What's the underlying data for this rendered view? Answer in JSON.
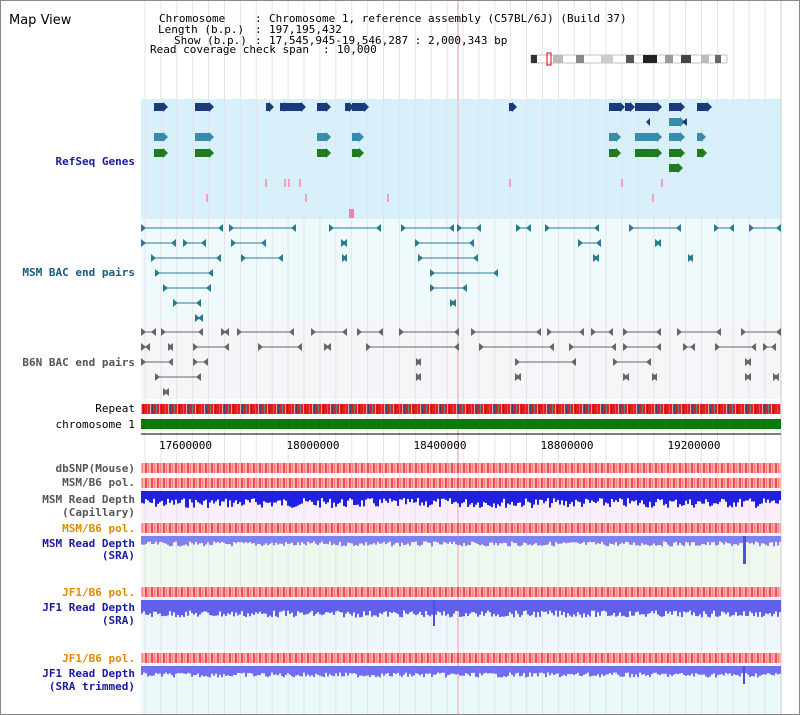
{
  "view_title": "Map View",
  "info": {
    "chromosome_label": "Chromosome",
    "chromosome_value": "Chromosome 1, reference assembly (C57BL/6J) (Build 37)",
    "length_label": "Length (b.p.)",
    "length_value": "197,195,432",
    "show_label": "Show (b.p.)",
    "show_value": "17,545,945-19,546,287 : 2,000,343 bp",
    "coverage_label": "Read coverage check span",
    "coverage_value": "10,000"
  },
  "ruler": {
    "ticks": [
      "17600000",
      "18000000",
      "18400000",
      "18800000",
      "19200000"
    ]
  },
  "tracks": {
    "refseq": "RefSeq Genes",
    "msm_bac": "MSM BAC end pairs",
    "b6n_bac": "B6N BAC end pairs",
    "repeat": "Repeat",
    "chromosome": "chromosome 1",
    "dbsnp": "dbSNP(Mouse)",
    "msm_b6_pol_1": "MSM/B6 pol.",
    "msm_depth_cap_1": "MSM Read Depth",
    "msm_depth_cap_2": "(Capillary)",
    "msm_b6_pol_2": "MSM/B6 pol.",
    "msm_depth_sra_1": "MSM Read Depth",
    "msm_depth_sra_2": "(SRA)",
    "jf1_b6_pol_1": "JF1/B6 pol.",
    "jf1_depth_sra_1": "JF1 Read Depth",
    "jf1_depth_sra_2": "(SRA)",
    "jf1_b6_pol_2": "JF1/B6 pol.",
    "jf1_depth_trim_1": "JF1 Read Depth",
    "jf1_depth_trim_2": "(SRA trimmed)"
  },
  "colors": {
    "gene_navy": "#1a3a7a",
    "gene_teal": "#3a8aaa",
    "gene_green": "#207a20",
    "msm_bac": "#2a7a90",
    "b6n_bac": "#555555",
    "depth_blue": "#1a1ae0",
    "depth_light": "#7070ee",
    "orange_label": "#e08a00",
    "blue_label": "#1a1aa0",
    "gray_label": "#555555"
  }
}
